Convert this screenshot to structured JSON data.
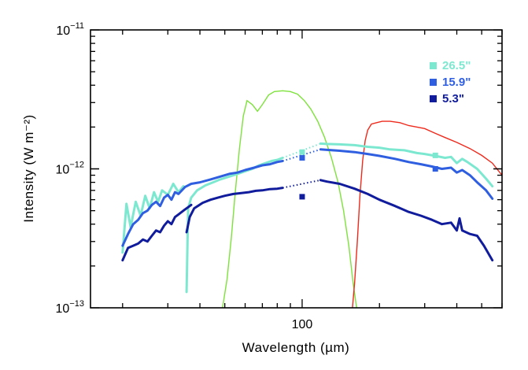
{
  "chart_data": {
    "type": "line",
    "title": "",
    "xlabel": "Wavelength (µm)",
    "ylabel": "Intensity (W m⁻²)",
    "xscale": "log",
    "yscale": "log",
    "xlim": [
      15,
      600
    ],
    "ylim": [
      1e-13,
      1e-11
    ],
    "x_ticks": [
      {
        "value": 100,
        "label": "100"
      }
    ],
    "y_ticks": [
      {
        "value": 1e-13,
        "label": "10",
        "exp": "−13"
      },
      {
        "value": 1e-12,
        "label": "10",
        "exp": "−12"
      },
      {
        "value": 1e-11,
        "label": "10",
        "exp": "−11"
      }
    ],
    "legend_position": "top-right",
    "series": [
      {
        "name": "26.5\"",
        "color": "#7de8d0",
        "segments": [
          [
            [
              20,
              2.5e-13
            ],
            [
              20.7,
              5.6e-13
            ],
            [
              21.5,
              3.8e-13
            ],
            [
              22.5,
              5.8e-13
            ],
            [
              23.5,
              4.6e-13
            ],
            [
              24.5,
              6.4e-13
            ],
            [
              25.5,
              5.2e-13
            ],
            [
              26.5,
              6.8e-13
            ],
            [
              27.5,
              5.8e-13
            ],
            [
              28.5,
              7e-13
            ],
            [
              30,
              6.5e-13
            ],
            [
              31.5,
              7.8e-13
            ],
            [
              33,
              6.8e-13
            ],
            [
              34.5,
              7.5e-13
            ]
          ],
          [
            [
              35.5,
              1.3e-13
            ],
            [
              36,
              5.2e-13
            ],
            [
              37,
              6.2e-13
            ],
            [
              39,
              7e-13
            ],
            [
              42,
              7.6e-13
            ],
            [
              45,
              8e-13
            ],
            [
              48,
              8.4e-13
            ],
            [
              52,
              8.8e-13
            ],
            [
              56,
              9.2e-13
            ],
            [
              60,
              9.6e-13
            ],
            [
              64,
              1e-12
            ],
            [
              68,
              1.06e-12
            ],
            [
              72,
              1.1e-12
            ],
            [
              76,
              1.14e-12
            ],
            [
              80,
              1.16e-12
            ],
            [
              84,
              1.2e-12
            ]
          ],
          [
            [
              118,
              1.52e-12
            ],
            [
              125,
              1.51e-12
            ],
            [
              140,
              1.5e-12
            ],
            [
              160,
              1.48e-12
            ],
            [
              180,
              1.44e-12
            ],
            [
              200,
              1.42e-12
            ],
            [
              220,
              1.38e-12
            ],
            [
              250,
              1.36e-12
            ],
            [
              280,
              1.3e-12
            ],
            [
              300,
              1.28e-12
            ],
            [
              330,
              1.24e-12
            ],
            [
              360,
              1.2e-12
            ],
            [
              380,
              1.22e-12
            ],
            [
              400,
              1.1e-12
            ],
            [
              420,
              1.18e-12
            ],
            [
              440,
              1.12e-12
            ],
            [
              480,
              1e-12
            ],
            [
              520,
              8.5e-13
            ],
            [
              550,
              7.5e-13
            ]
          ]
        ],
        "gap": [
          [
            84,
            1.2e-12
          ],
          [
            118,
            1.52e-12
          ]
        ],
        "photometry": [
          {
            "x": 100,
            "y": 1.32e-12
          },
          {
            "x": 330,
            "y": 1.25e-12
          }
        ]
      },
      {
        "name": "15.9\"",
        "color": "#2f5fe0",
        "segments": [
          [
            [
              20,
              2.8e-13
            ],
            [
              21,
              3.4e-13
            ],
            [
              22,
              4e-13
            ],
            [
              23,
              4.3e-13
            ],
            [
              24,
              4.8e-13
            ],
            [
              25,
              5e-13
            ],
            [
              26,
              5.5e-13
            ],
            [
              27,
              5.8e-13
            ],
            [
              28,
              5.4e-13
            ],
            [
              29,
              6.2e-13
            ],
            [
              30,
              6.5e-13
            ],
            [
              31,
              6e-13
            ],
            [
              32,
              6.8e-13
            ],
            [
              33,
              6.6e-13
            ],
            [
              35,
              7.4e-13
            ],
            [
              37,
              7.8e-13
            ],
            [
              40,
              8e-13
            ],
            [
              44,
              8.4e-13
            ],
            [
              48,
              8.8e-13
            ],
            [
              52,
              9.2e-13
            ],
            [
              56,
              9.4e-13
            ],
            [
              60,
              9.8e-13
            ],
            [
              65,
              1.02e-12
            ],
            [
              70,
              1.06e-12
            ],
            [
              75,
              1.08e-12
            ],
            [
              80,
              1.12e-12
            ],
            [
              84,
              1.14e-12
            ]
          ],
          [
            [
              118,
              1.38e-12
            ],
            [
              125,
              1.37e-12
            ],
            [
              140,
              1.35e-12
            ],
            [
              160,
              1.32e-12
            ],
            [
              180,
              1.28e-12
            ],
            [
              200,
              1.24e-12
            ],
            [
              230,
              1.18e-12
            ],
            [
              260,
              1.12e-12
            ],
            [
              290,
              1.08e-12
            ],
            [
              320,
              1.04e-12
            ],
            [
              350,
              1e-12
            ],
            [
              380,
              1.02e-12
            ],
            [
              400,
              9.4e-13
            ],
            [
              420,
              9.8e-13
            ],
            [
              450,
              9e-13
            ],
            [
              480,
              8e-13
            ],
            [
              520,
              7e-13
            ],
            [
              550,
              6.1e-13
            ]
          ]
        ],
        "gap": [
          [
            84,
            1.14e-12
          ],
          [
            118,
            1.38e-12
          ]
        ],
        "photometry": [
          {
            "x": 100,
            "y": 1.2e-12
          },
          {
            "x": 330,
            "y": 1e-12
          }
        ]
      },
      {
        "name": "5.3\"",
        "color": "#101c9c",
        "segments": [
          [
            [
              20,
              2.2e-13
            ],
            [
              21,
              2.7e-13
            ],
            [
              22,
              2.8e-13
            ],
            [
              23,
              2.9e-13
            ],
            [
              24,
              3.1e-13
            ],
            [
              25,
              3e-13
            ],
            [
              26,
              3.3e-13
            ],
            [
              27,
              3.6e-13
            ],
            [
              28,
              3.5e-13
            ],
            [
              29,
              3.9e-13
            ],
            [
              30,
              4.2e-13
            ],
            [
              31,
              4e-13
            ],
            [
              32,
              4.5e-13
            ],
            [
              33,
              4.7e-13
            ],
            [
              34,
              4.9e-13
            ],
            [
              35,
              5.1e-13
            ],
            [
              36,
              5.3e-13
            ],
            [
              37,
              5.5e-13
            ]
          ],
          [
            [
              35.5,
              3.5e-13
            ],
            [
              36.5,
              4.5e-13
            ],
            [
              38,
              5.2e-13
            ],
            [
              41,
              5.7e-13
            ],
            [
              44,
              6e-13
            ],
            [
              47,
              6.2e-13
            ],
            [
              50,
              6.4e-13
            ],
            [
              54,
              6.6e-13
            ],
            [
              58,
              6.7e-13
            ],
            [
              62,
              6.8e-13
            ],
            [
              66,
              6.95e-13
            ],
            [
              70,
              7e-13
            ],
            [
              75,
              7.15e-13
            ],
            [
              80,
              7.2e-13
            ],
            [
              84,
              7.3e-13
            ]
          ],
          [
            [
              118,
              8.3e-13
            ],
            [
              125,
              8.1e-13
            ],
            [
              140,
              7.8e-13
            ],
            [
              160,
              7.2e-13
            ],
            [
              180,
              6.6e-13
            ],
            [
              200,
              6e-13
            ],
            [
              230,
              5.4e-13
            ],
            [
              260,
              4.9e-13
            ],
            [
              290,
              4.6e-13
            ],
            [
              320,
              4.3e-13
            ],
            [
              350,
              4e-13
            ],
            [
              380,
              4.1e-13
            ],
            [
              400,
              3.6e-13
            ],
            [
              410,
              4.4e-13
            ],
            [
              420,
              3.6e-13
            ],
            [
              450,
              3.4e-13
            ],
            [
              480,
              3.3e-13
            ],
            [
              510,
              2.8e-13
            ],
            [
              550,
              2.2e-13
            ]
          ]
        ],
        "gap": [
          [
            84,
            7.3e-13
          ],
          [
            118,
            8.3e-13
          ]
        ],
        "photometry": [
          {
            "x": 100,
            "y": 6.3e-13
          }
        ]
      }
    ],
    "filter_curves": [
      {
        "name": "green filter",
        "color": "#7ee23c",
        "points": [
          [
            49,
            1e-13
          ],
          [
            51,
            1.6e-13
          ],
          [
            53,
            3.2e-13
          ],
          [
            55,
            7e-13
          ],
          [
            57,
            1.4e-12
          ],
          [
            59,
            2.4e-12
          ],
          [
            61,
            3.1e-12
          ],
          [
            64,
            2.9e-12
          ],
          [
            67,
            2.6e-12
          ],
          [
            70,
            2.9e-12
          ],
          [
            74,
            3.4e-12
          ],
          [
            78,
            3.6e-12
          ],
          [
            84,
            3.65e-12
          ],
          [
            90,
            3.6e-12
          ],
          [
            96,
            3.45e-12
          ],
          [
            102,
            3.1e-12
          ],
          [
            108,
            2.7e-12
          ],
          [
            115,
            2.2e-12
          ],
          [
            122,
            1.7e-12
          ],
          [
            130,
            1.2e-12
          ],
          [
            138,
            8e-13
          ],
          [
            145,
            5e-13
          ],
          [
            152,
            2.8e-13
          ],
          [
            158,
            1.5e-13
          ],
          [
            163,
            1e-13
          ]
        ]
      },
      {
        "name": "red filter",
        "color": "#ee2a1c",
        "points": [
          [
            157,
            1e-13
          ],
          [
            160,
            1.5e-13
          ],
          [
            164,
            3e-13
          ],
          [
            168,
            6.5e-13
          ],
          [
            172,
            1.15e-12
          ],
          [
            176,
            1.6e-12
          ],
          [
            180,
            1.9e-12
          ],
          [
            186,
            2.1e-12
          ],
          [
            195,
            2.15e-12
          ],
          [
            205,
            2.2e-12
          ],
          [
            220,
            2.2e-12
          ],
          [
            240,
            2.15e-12
          ],
          [
            260,
            2.05e-12
          ],
          [
            280,
            2e-12
          ],
          [
            300,
            1.95e-12
          ],
          [
            330,
            1.8e-12
          ],
          [
            360,
            1.68e-12
          ],
          [
            400,
            1.55e-12
          ],
          [
            450,
            1.4e-12
          ],
          [
            500,
            1.25e-12
          ],
          [
            550,
            1.1e-12
          ],
          [
            600,
            9e-13
          ]
        ]
      }
    ]
  }
}
